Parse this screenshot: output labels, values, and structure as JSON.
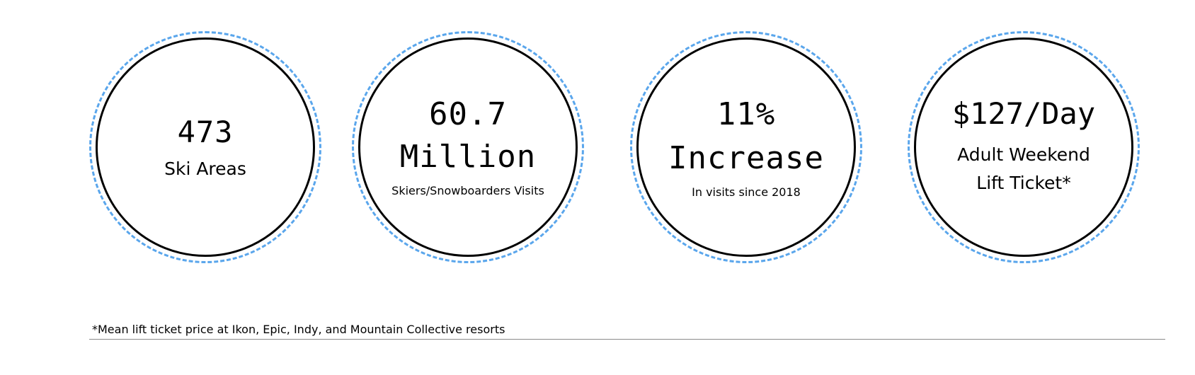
{
  "colors": {
    "ring_dashed": "#5aa6ec",
    "ring_solid": "#000000",
    "text": "#000000",
    "rule": "#8a8a8a"
  },
  "stats": [
    {
      "value": "473",
      "label": "Ski Areas"
    },
    {
      "value_line1": "60.7",
      "value_line2": "Million",
      "label": "Skiers/Snowboarders Visits"
    },
    {
      "value_line1": "11%",
      "value_line2": "Increase",
      "label": "In visits since 2018"
    },
    {
      "value": "$127/Day",
      "label_line1": "Adult Weekend",
      "label_line2": "Lift Ticket*"
    }
  ],
  "footnote": "*Mean lift ticket price at Ikon, Epic, Indy, and Mountain Collective resorts"
}
